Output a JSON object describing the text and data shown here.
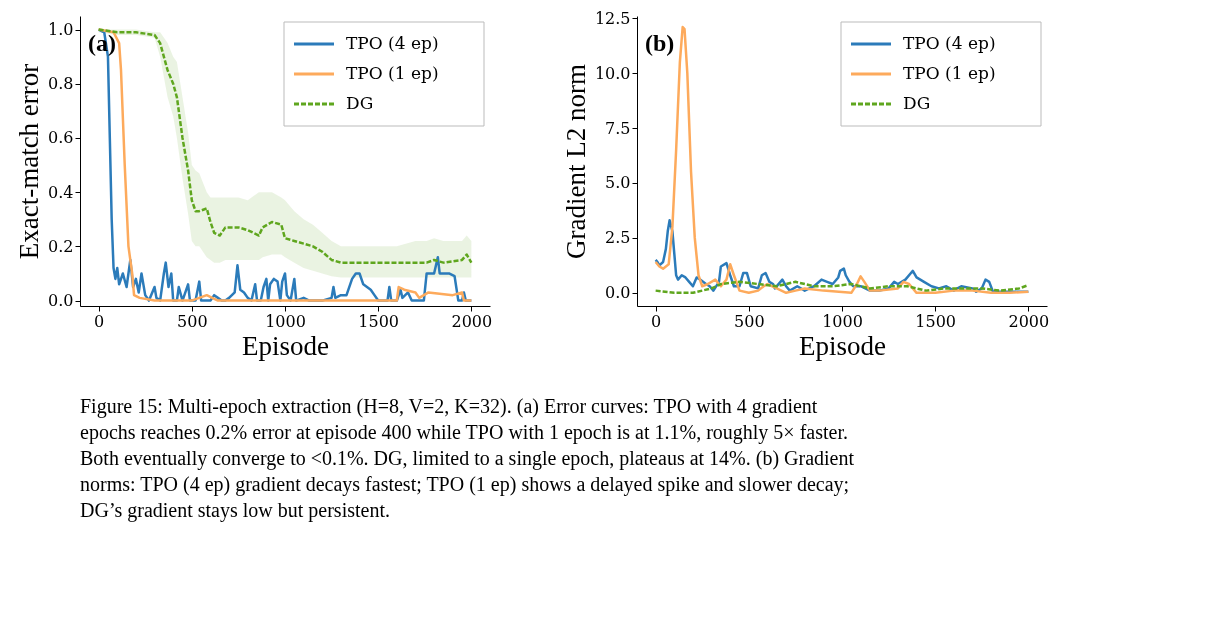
{
  "chart_data": [
    {
      "type": "line",
      "xlabel": "Episode",
      "ylabel": "Exact-match error",
      "xlim": [
        -100,
        2100
      ],
      "ylim": [
        -0.02,
        1.05
      ],
      "xticks": [
        0,
        500,
        1000,
        1500,
        2000
      ],
      "yticks": [
        {
          "value": 0,
          "label": "0.0"
        },
        {
          "value": 0.2,
          "label": "0.2"
        },
        {
          "value": 0.4,
          "label": "0.4"
        },
        {
          "value": 0.6,
          "label": "0.6"
        },
        {
          "value": 0.8,
          "label": "0.8"
        },
        {
          "value": 1,
          "label": "1.0"
        }
      ],
      "legend": "top right",
      "annotations": [
        "(a)",
        "Figure 15: Multi-epoch extraction (H=8, V=2, K=32). (a) Error curves: TPO with 4 gradient",
        "epochs reaches 0.2% error at episode 400 while TPO with 1 epoch is at 1.1%, roughly 5× faster.",
        "Both eventually converge to <0.1%. DG, limited to a single epoch, plateaus at 14%. (b) Gradient",
        "norms: TPO (4 ep) gradient decays fastest; TPO (1 ep) shows a delayed spike and slower decay;",
        "DG’s gradient stays low but persistent."
      ],
      "series": [
        {
          "name": "TPO (4 ep)",
          "color": "#2b7bba",
          "line_style": "solid",
          "x": [
            0,
            30,
            50,
            60,
            70,
            80,
            90,
            100,
            110,
            130,
            150,
            170,
            185,
            200,
            215,
            230,
            250,
            270,
            300,
            310,
            330,
            350,
            360,
            375,
            390,
            400,
            420,
            430,
            450,
            480,
            490,
            520,
            540,
            550,
            600,
            620,
            640,
            660,
            680,
            700,
            730,
            745,
            760,
            780,
            800,
            820,
            840,
            850,
            870,
            885,
            900,
            910,
            920,
            940,
            960,
            975,
            985,
            1000,
            1010,
            1030,
            1050,
            1060,
            1100,
            1130,
            1200,
            1250,
            1260,
            1270,
            1300,
            1330,
            1360,
            1380,
            1400,
            1420,
            1440,
            1460,
            1480,
            1500,
            1550,
            1560,
            1570,
            1600,
            1620,
            1630,
            1660,
            1680,
            1700,
            1745,
            1760,
            1800,
            1820,
            1830,
            1880,
            1910,
            1930,
            1950,
            1960,
            1970,
            2000
          ],
          "values": [
            1.0,
            0.99,
            0.9,
            0.6,
            0.3,
            0.12,
            0.08,
            0.12,
            0.06,
            0.1,
            0.05,
            0.15,
            0.05,
            0.08,
            0.03,
            0.1,
            0.02,
            0.0,
            0.05,
            0.01,
            0.0,
            0.1,
            0.14,
            0.05,
            0.1,
            0.0,
            0.0,
            0.05,
            0.0,
            0.06,
            0.0,
            0.0,
            0.07,
            0.0,
            0.0,
            0.02,
            0.01,
            0.0,
            0.0,
            0.01,
            0.03,
            0.13,
            0.04,
            0.03,
            0.01,
            0.0,
            0.06,
            0.0,
            0.0,
            0.05,
            0.08,
            0.0,
            0.06,
            0.08,
            0.07,
            0.0,
            0.07,
            0.1,
            0.02,
            0.0,
            0.08,
            0.0,
            0.01,
            0.0,
            0.0,
            0.01,
            0.05,
            0.01,
            0.02,
            0.02,
            0.08,
            0.1,
            0.1,
            0.06,
            0.05,
            0.04,
            0.02,
            0.0,
            0.0,
            0.05,
            0.0,
            0.0,
            0.04,
            0.01,
            0.03,
            0.0,
            0.0,
            0.0,
            0.1,
            0.1,
            0.16,
            0.1,
            0.1,
            0.09,
            0.0,
            0.0,
            0.03,
            0.0,
            0.0
          ]
        },
        {
          "name": "TPO (1 ep)",
          "color": "#fdaa5c",
          "line_style": "solid",
          "x": [
            0,
            80,
            110,
            120,
            140,
            160,
            180,
            190,
            220,
            300,
            400,
            500,
            580,
            640,
            800,
            1000,
            1200,
            1500,
            1600,
            1610,
            1640,
            1700,
            1720,
            1770,
            1900,
            1950,
            1960,
            2000
          ],
          "values": [
            1.0,
            0.99,
            0.95,
            0.85,
            0.5,
            0.2,
            0.1,
            0.02,
            0.01,
            0.0,
            0.0,
            0.0,
            0.02,
            0.0,
            0.0,
            0.0,
            0.0,
            0.0,
            0.0,
            0.05,
            0.04,
            0.03,
            0.01,
            0.03,
            0.02,
            0.03,
            0.0,
            0.0
          ]
        },
        {
          "name": "DG",
          "color": "#5fa61e",
          "line_style": "dashed",
          "x": [
            0,
            100,
            200,
            300,
            330,
            370,
            400,
            420,
            450,
            480,
            500,
            520,
            540,
            580,
            600,
            620,
            650,
            680,
            750,
            800,
            860,
            880,
            930,
            980,
            1000,
            1050,
            1100,
            1150,
            1200,
            1250,
            1300,
            1400,
            1500,
            1600,
            1700,
            1760,
            1800,
            1850,
            1950,
            1975,
            2000
          ],
          "values": [
            1.0,
            0.99,
            0.99,
            0.98,
            0.95,
            0.85,
            0.8,
            0.75,
            0.6,
            0.48,
            0.37,
            0.33,
            0.33,
            0.34,
            0.29,
            0.25,
            0.24,
            0.27,
            0.27,
            0.26,
            0.24,
            0.27,
            0.29,
            0.28,
            0.23,
            0.22,
            0.21,
            0.2,
            0.18,
            0.15,
            0.14,
            0.14,
            0.14,
            0.14,
            0.14,
            0.14,
            0.15,
            0.14,
            0.15,
            0.17,
            0.14
          ],
          "lower": [
            0.99,
            0.98,
            0.98,
            0.97,
            0.9,
            0.75,
            0.68,
            0.6,
            0.45,
            0.32,
            0.22,
            0.2,
            0.2,
            0.16,
            0.15,
            0.14,
            0.14,
            0.15,
            0.15,
            0.15,
            0.15,
            0.16,
            0.17,
            0.17,
            0.16,
            0.14,
            0.12,
            0.11,
            0.1,
            0.09,
            0.085,
            0.085,
            0.085,
            0.085,
            0.085,
            0.085,
            0.085,
            0.085,
            0.085,
            0.085,
            0.085
          ],
          "upper": [
            1.0,
            1.0,
            1.0,
            0.99,
            0.99,
            0.95,
            0.9,
            0.88,
            0.75,
            0.62,
            0.5,
            0.48,
            0.47,
            0.4,
            0.38,
            0.38,
            0.38,
            0.38,
            0.38,
            0.37,
            0.4,
            0.4,
            0.4,
            0.38,
            0.37,
            0.33,
            0.3,
            0.28,
            0.25,
            0.22,
            0.2,
            0.2,
            0.2,
            0.2,
            0.22,
            0.22,
            0.23,
            0.22,
            0.22,
            0.24,
            0.22
          ]
        }
      ]
    },
    {
      "type": "line",
      "xlabel": "Episode",
      "ylabel": "Gradient L2 norm",
      "xlim": [
        -100,
        2100
      ],
      "ylim": [
        -0.6,
        12.6
      ],
      "xticks": [
        0,
        500,
        1000,
        1500,
        2000
      ],
      "yticks": [
        {
          "value": 0,
          "label": "0.0"
        },
        2.5,
        {
          "value": 5,
          "label": "5.0"
        },
        7.5,
        {
          "value": 10,
          "label": "10.0"
        },
        12.5
      ],
      "legend": "top right",
      "annotations": [
        "(b)"
      ],
      "series": [
        {
          "name": "TPO (4 ep)",
          "color": "#2b7bba",
          "line_style": "solid",
          "x": [
            0,
            10,
            20,
            40,
            55,
            65,
            75,
            90,
            100,
            110,
            120,
            140,
            160,
            180,
            200,
            220,
            240,
            270,
            290,
            310,
            340,
            350,
            380,
            400,
            420,
            450,
            470,
            490,
            510,
            550,
            570,
            590,
            610,
            630,
            640,
            680,
            700,
            720,
            760,
            800,
            850,
            890,
            920,
            950,
            980,
            990,
            1010,
            1020,
            1040,
            1060,
            1100,
            1150,
            1200,
            1250,
            1280,
            1300,
            1340,
            1370,
            1380,
            1400,
            1440,
            1480,
            1520,
            1560,
            1600,
            1620,
            1640,
            1700,
            1720,
            1750,
            1770,
            1790,
            1810,
            1900,
            2000
          ],
          "values": [
            1.5,
            1.4,
            1.25,
            1.4,
            2.0,
            2.8,
            3.3,
            2.8,
            1.8,
            0.8,
            0.6,
            0.8,
            0.7,
            0.5,
            0.3,
            0.7,
            0.6,
            0.4,
            0.3,
            0.1,
            0.5,
            1.2,
            1.35,
            0.8,
            0.3,
            0.3,
            0.9,
            0.9,
            0.3,
            0.2,
            0.8,
            0.9,
            0.5,
            0.4,
            0.2,
            0.6,
            0.3,
            0.1,
            0.3,
            0.1,
            0.3,
            0.6,
            0.5,
            0.4,
            0.7,
            1.0,
            1.1,
            0.8,
            0.5,
            0.3,
            0.3,
            0.1,
            0.1,
            0.2,
            0.5,
            0.4,
            0.6,
            0.9,
            1.0,
            0.7,
            0.5,
            0.3,
            0.2,
            0.3,
            0.1,
            0.2,
            0.3,
            0.2,
            0.05,
            0.2,
            0.6,
            0.5,
            0.05,
            0.05,
            0.05
          ]
        },
        {
          "name": "TPO (1 ep)",
          "color": "#fdaa5c",
          "line_style": "solid",
          "x": [
            0,
            20,
            40,
            70,
            90,
            110,
            130,
            145,
            155,
            170,
            190,
            210,
            230,
            250,
            280,
            320,
            350,
            380,
            400,
            420,
            450,
            500,
            550,
            580,
            600,
            650,
            700,
            750,
            800,
            900,
            1050,
            1080,
            1100,
            1120,
            1150,
            1200,
            1300,
            1330,
            1360,
            1400,
            1500,
            1600,
            1700,
            1800,
            1900,
            2000
          ],
          "values": [
            1.4,
            1.2,
            1.1,
            1.3,
            3.0,
            6.5,
            10.5,
            12.1,
            12.0,
            10.0,
            5.5,
            2.5,
            0.8,
            0.3,
            0.4,
            0.6,
            0.3,
            0.6,
            1.3,
            0.8,
            0.1,
            0.0,
            0.1,
            0.3,
            0.4,
            0.2,
            0.0,
            0.1,
            0.2,
            0.1,
            0.0,
            0.4,
            0.75,
            0.5,
            0.1,
            0.1,
            0.2,
            0.5,
            0.4,
            0.0,
            0.0,
            0.1,
            0.1,
            0.0,
            0.0,
            0.05
          ]
        },
        {
          "name": "DG",
          "color": "#5fa61e",
          "line_style": "dashed",
          "x": [
            0,
            100,
            200,
            300,
            350,
            450,
            550,
            650,
            700,
            750,
            850,
            950,
            1050,
            1150,
            1250,
            1350,
            1450,
            1550,
            1650,
            1750,
            1850,
            1950,
            2000
          ],
          "values": [
            0.1,
            0.0,
            0.0,
            0.2,
            0.4,
            0.5,
            0.4,
            0.3,
            0.4,
            0.5,
            0.3,
            0.3,
            0.4,
            0.2,
            0.3,
            0.3,
            0.1,
            0.2,
            0.2,
            0.2,
            0.1,
            0.2,
            0.35
          ]
        }
      ]
    }
  ]
}
